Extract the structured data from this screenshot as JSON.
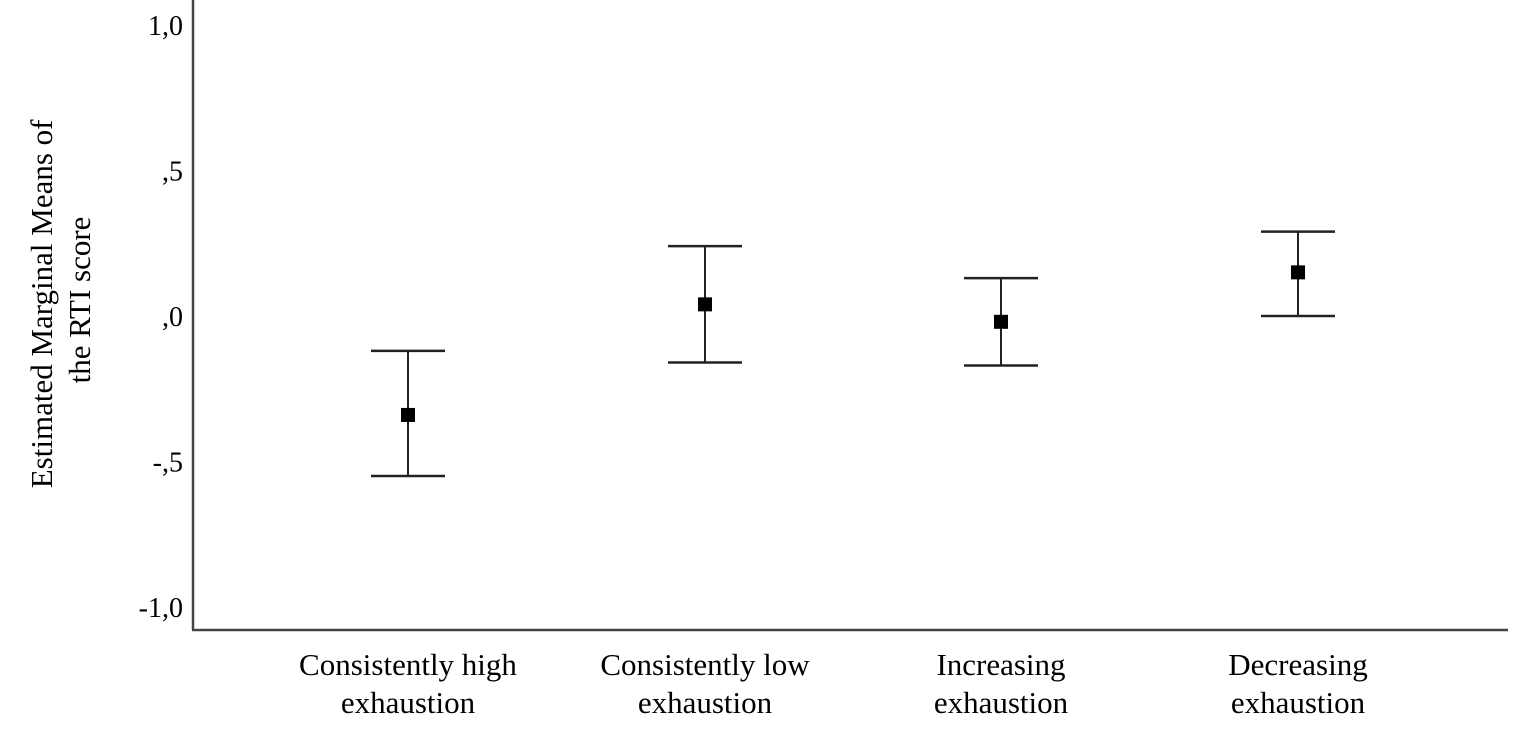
{
  "chart_data": {
    "type": "scatter",
    "subtype": "error-bar",
    "title": "",
    "xlabel": "",
    "ylabel_lines": [
      "Estimated Marginal Means of",
      "the RTI score"
    ],
    "ylim": [
      -1.1,
      1.08
    ],
    "yticks": [
      1.0,
      0.5,
      0.0,
      -0.5,
      -1.0
    ],
    "ytick_labels": [
      "1,0",
      ",5",
      ",0",
      "-,5",
      "-1,0"
    ],
    "grid": false,
    "categories": [
      {
        "lines": [
          "Consistently high",
          "exhaustion"
        ]
      },
      {
        "lines": [
          "Consistently low",
          "exhaustion"
        ]
      },
      {
        "lines": [
          "Increasing",
          "exhaustion"
        ]
      },
      {
        "lines": [
          "Decreasing",
          "exhaustion"
        ]
      }
    ],
    "means": [
      -0.34,
      0.04,
      -0.02,
      0.15
    ],
    "ci_lower": [
      -0.55,
      -0.16,
      -0.17,
      0.0
    ],
    "ci_upper": [
      -0.12,
      0.24,
      0.13,
      0.29
    ],
    "colors": {
      "marker": "#000000",
      "line": "#222222",
      "axis": "#444444"
    }
  }
}
